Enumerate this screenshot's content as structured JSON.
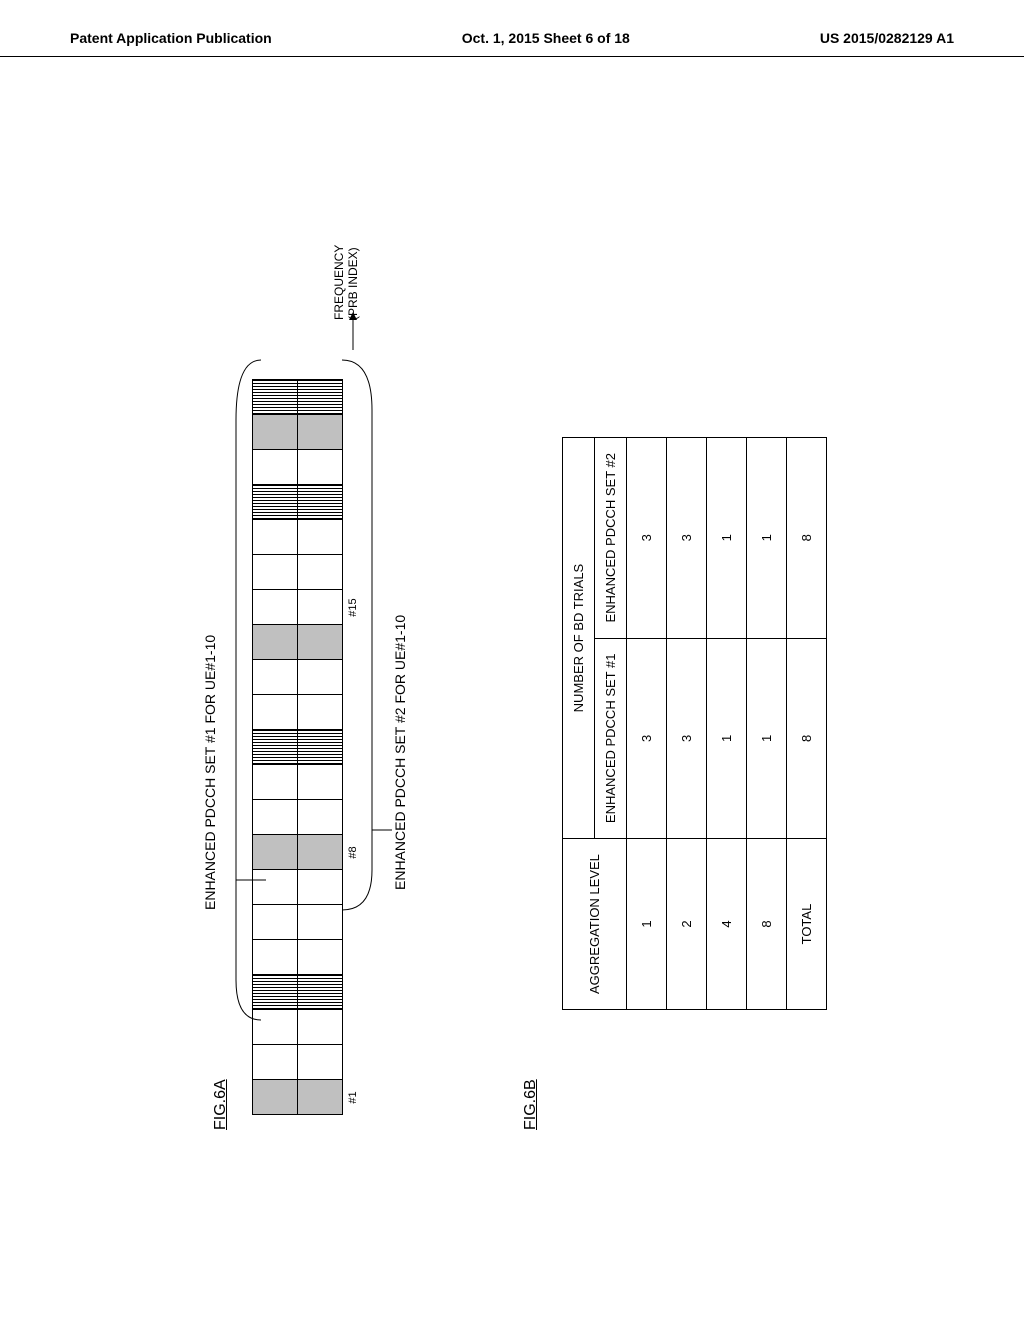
{
  "header": {
    "left": "Patent Application Publication",
    "center": "Oct. 1, 2015  Sheet 6 of 18",
    "right": "US 2015/0282129 A1"
  },
  "fig6a": {
    "label": "FIG.6A",
    "set1_label": "ENHANCED PDCCH SET #1 FOR UE#1-10",
    "set2_label": "ENHANCED PDCCH SET #2 FOR UE#1-10",
    "axis_label1": "FREQUENCY",
    "axis_label2": "(PRB INDEX)",
    "indices": [
      "#1",
      "",
      "",
      "",
      "",
      "",
      "",
      "#8",
      "",
      "",
      "",
      "",
      "",
      "",
      "#15",
      "",
      "",
      "",
      "",
      "",
      ""
    ],
    "row1_types": [
      "gray",
      "plain",
      "plain",
      "hatched",
      "plain",
      "plain",
      "plain",
      "gray",
      "plain",
      "plain",
      "hatched",
      "plain",
      "plain",
      "gray",
      "plain",
      "plain",
      "plain",
      "hatched",
      "plain",
      "gray",
      "hatched"
    ],
    "row2_types": [
      "gray",
      "plain",
      "plain",
      "hatched",
      "plain",
      "plain",
      "plain",
      "gray",
      "plain",
      "plain",
      "hatched",
      "plain",
      "plain",
      "gray",
      "plain",
      "plain",
      "plain",
      "hatched",
      "plain",
      "gray",
      "hatched"
    ]
  },
  "fig6b": {
    "label": "FIG.6B",
    "col1_header": "AGGREGATION LEVEL",
    "col_group_header": "NUMBER OF BD TRIALS",
    "col2_header": "ENHANCED PDCCH SET #1",
    "col3_header": "ENHANCED PDCCH SET #2",
    "rows": [
      {
        "level": "1",
        "set1": "3",
        "set2": "3"
      },
      {
        "level": "2",
        "set1": "3",
        "set2": "3"
      },
      {
        "level": "4",
        "set1": "1",
        "set2": "1"
      },
      {
        "level": "8",
        "set1": "1",
        "set2": "1"
      },
      {
        "level": "TOTAL",
        "set1": "8",
        "set2": "8"
      }
    ]
  }
}
